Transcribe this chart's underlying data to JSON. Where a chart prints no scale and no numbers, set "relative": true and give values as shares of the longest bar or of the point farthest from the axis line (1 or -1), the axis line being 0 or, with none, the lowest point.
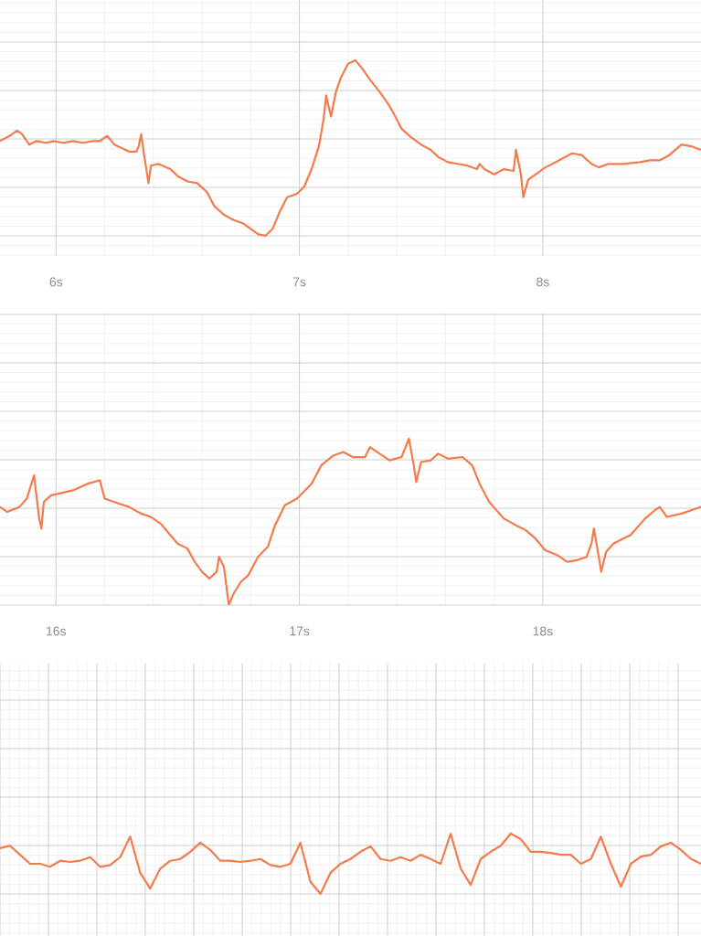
{
  "chart_data": [
    {
      "type": "line",
      "relative": true,
      "grid": true,
      "color": "#f47b4b",
      "xlim": [
        5.77,
        8.65
      ],
      "xticks": [
        {
          "value": 6,
          "label": "6s"
        },
        {
          "value": 7,
          "label": "7s"
        },
        {
          "value": 8,
          "label": "8s"
        }
      ],
      "x": [
        5.77,
        5.81,
        5.84,
        5.86,
        5.89,
        5.92,
        5.96,
        5.99,
        6.03,
        6.07,
        6.11,
        6.15,
        6.18,
        6.21,
        6.24,
        6.3,
        6.33,
        6.34,
        6.35,
        6.36,
        6.38,
        6.39,
        6.42,
        6.47,
        6.5,
        6.54,
        6.58,
        6.62,
        6.65,
        6.69,
        6.73,
        6.77,
        6.8,
        6.83,
        6.86,
        6.89,
        6.92,
        6.95,
        6.99,
        7.02,
        7.05,
        7.08,
        7.1,
        7.11,
        7.13,
        7.15,
        7.17,
        7.2,
        7.23,
        7.26,
        7.29,
        7.33,
        7.37,
        7.39,
        7.42,
        7.46,
        7.5,
        7.54,
        7.57,
        7.61,
        7.65,
        7.69,
        7.73,
        7.74,
        7.76,
        7.8,
        7.84,
        7.88,
        7.89,
        7.91,
        7.92,
        7.94,
        7.97,
        8.01,
        8.04,
        8.08,
        8.12,
        8.16,
        8.2,
        8.23,
        8.27,
        8.33,
        8.4,
        8.44,
        8.48,
        8.52,
        8.57,
        8.61,
        8.65
      ],
      "values": [
        0.54,
        0.57,
        0.6,
        0.58,
        0.52,
        0.54,
        0.53,
        0.54,
        0.53,
        0.54,
        0.53,
        0.54,
        0.54,
        0.57,
        0.52,
        0.48,
        0.48,
        0.51,
        0.58,
        0.48,
        0.3,
        0.4,
        0.41,
        0.38,
        0.34,
        0.31,
        0.3,
        0.25,
        0.17,
        0.12,
        0.09,
        0.07,
        0.04,
        0.01,
        0,
        0.04,
        0.14,
        0.22,
        0.24,
        0.28,
        0.38,
        0.51,
        0.67,
        0.8,
        0.68,
        0.82,
        0.9,
        0.98,
        1,
        0.95,
        0.89,
        0.82,
        0.74,
        0.69,
        0.61,
        0.56,
        0.52,
        0.49,
        0.45,
        0.42,
        0.41,
        0.4,
        0.38,
        0.41,
        0.38,
        0.35,
        0.38,
        0.37,
        0.49,
        0.35,
        0.22,
        0.32,
        0.35,
        0.39,
        0.41,
        0.44,
        0.47,
        0.46,
        0.41,
        0.39,
        0.41,
        0.41,
        0.42,
        0.43,
        0.43,
        0.46,
        0.52,
        0.51,
        0.49
      ]
    },
    {
      "type": "line",
      "relative": true,
      "grid": true,
      "color": "#f47b4b",
      "xlim": [
        15.77,
        18.65
      ],
      "xticks": [
        {
          "value": 16,
          "label": "16s"
        },
        {
          "value": 17,
          "label": "17s"
        },
        {
          "value": 18,
          "label": "18s"
        }
      ],
      "x": [
        15.77,
        15.8,
        15.85,
        15.88,
        15.91,
        15.93,
        15.94,
        15.95,
        15.98,
        16.01,
        16.07,
        16.13,
        16.18,
        16.2,
        16.24,
        16.3,
        16.35,
        16.39,
        16.43,
        16.47,
        16.5,
        16.54,
        16.57,
        16.6,
        16.63,
        16.66,
        16.67,
        16.69,
        16.71,
        16.73,
        16.76,
        16.79,
        16.83,
        16.87,
        16.9,
        16.94,
        16.99,
        17.05,
        17.09,
        17.14,
        17.18,
        17.22,
        17.27,
        17.29,
        17.32,
        17.37,
        17.42,
        17.45,
        17.47,
        17.48,
        17.5,
        17.54,
        17.57,
        17.61,
        17.67,
        17.71,
        17.74,
        17.78,
        17.84,
        17.89,
        17.93,
        17.97,
        18.01,
        18.06,
        18.1,
        18.14,
        18.18,
        18.2,
        18.21,
        18.23,
        18.24,
        18.26,
        18.29,
        18.33,
        18.36,
        18.42,
        18.46,
        18.48,
        18.51,
        18.57,
        18.61,
        18.65
      ],
      "values": [
        0.59,
        0.56,
        0.59,
        0.64,
        0.78,
        0.53,
        0.46,
        0.62,
        0.66,
        0.67,
        0.69,
        0.73,
        0.75,
        0.64,
        0.62,
        0.59,
        0.55,
        0.53,
        0.49,
        0.42,
        0.37,
        0.34,
        0.26,
        0.2,
        0.16,
        0.2,
        0.29,
        0.23,
        0,
        0.07,
        0.14,
        0.18,
        0.29,
        0.35,
        0.48,
        0.6,
        0.64,
        0.73,
        0.84,
        0.9,
        0.92,
        0.89,
        0.89,
        0.95,
        0.92,
        0.87,
        0.89,
        1,
        0.84,
        0.74,
        0.86,
        0.87,
        0.91,
        0.88,
        0.89,
        0.84,
        0.73,
        0.62,
        0.52,
        0.48,
        0.45,
        0.4,
        0.33,
        0.3,
        0.26,
        0.27,
        0.29,
        0.37,
        0.46,
        0.29,
        0.2,
        0.32,
        0.37,
        0.4,
        0.42,
        0.52,
        0.57,
        0.59,
        0.53,
        0.55,
        0.57,
        0.59
      ]
    },
    {
      "type": "line",
      "relative": true,
      "grid": true,
      "color": "#f47b4b",
      "categories": [
        null,
        null,
        null,
        null,
        null,
        null,
        null,
        null,
        null,
        null,
        null,
        null,
        null,
        null,
        null,
        null,
        null,
        null,
        null,
        null,
        null,
        null,
        null,
        null,
        null,
        null,
        null,
        null,
        null,
        null,
        null,
        null,
        null,
        null,
        null,
        null,
        null,
        null,
        null,
        null,
        null,
        null,
        null,
        null,
        null,
        null,
        null,
        null,
        null,
        null,
        null,
        null,
        null,
        null,
        null,
        null,
        null,
        null,
        null,
        null,
        null,
        null,
        null,
        null,
        null,
        null,
        null,
        null,
        null,
        null,
        null
      ],
      "values": [
        0.76,
        0.8,
        0.65,
        0.5,
        0.5,
        0.45,
        0.55,
        0.53,
        0.55,
        0.61,
        0.45,
        0.48,
        0.61,
        0.95,
        0.35,
        0.09,
        0.42,
        0.55,
        0.58,
        0.7,
        0.85,
        0.73,
        0.55,
        0.55,
        0.53,
        0.55,
        0.58,
        0.48,
        0.45,
        0.5,
        0.85,
        0.2,
        0,
        0.35,
        0.5,
        0.58,
        0.7,
        0.79,
        0.58,
        0.55,
        0.61,
        0.55,
        0.65,
        0.58,
        0.5,
        1,
        0.42,
        0.15,
        0.58,
        0.7,
        0.8,
        1,
        0.91,
        0.7,
        0.7,
        0.68,
        0.65,
        0.65,
        0.5,
        0.58,
        0.95,
        0.5,
        0.12,
        0.5,
        0.62,
        0.65,
        0.79,
        0.85,
        0.73,
        0.58,
        0.5
      ]
    }
  ]
}
